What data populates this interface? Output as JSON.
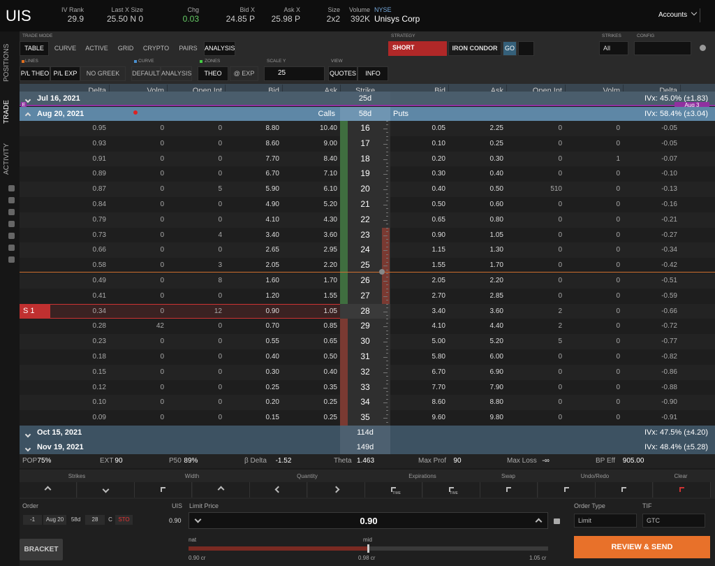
{
  "header": {
    "symbol": "UIS",
    "stats": [
      {
        "label": "IV Rank",
        "value": "29.9"
      },
      {
        "label": "Last X Size",
        "value": "25.50 N 0"
      },
      {
        "label": "Chg",
        "value": "0.03"
      },
      {
        "label": "Bid X",
        "value": "24.85 P"
      },
      {
        "label": "Ask X",
        "value": "25.98 P"
      },
      {
        "label": "Size",
        "value": "2x2"
      },
      {
        "label": "Volume",
        "value": "392K"
      },
      {
        "label": "NYSE",
        "value": "Unisys Corp"
      }
    ],
    "accounts": "Accounts"
  },
  "sidebar": [
    "POSITIONS",
    "TRADE",
    "ACTIVITY"
  ],
  "toolbar": {
    "trade_mode": {
      "label": "TRADE MODE",
      "buttons": [
        "TABLE",
        "CURVE",
        "ACTIVE",
        "GRID",
        "CRYPTO",
        "PAIRS",
        "ANALYSIS"
      ]
    },
    "strategy": {
      "label": "STRATEGY",
      "side": "SHORT",
      "name": "IRON CONDOR",
      "go": "GO"
    },
    "strikes": {
      "label": "STRIKES",
      "value": "All"
    },
    "config": {
      "label": "CONFIG"
    },
    "lines": {
      "label": "LINES",
      "buttons": [
        "P/L THEO",
        "P/L EXP",
        "NO GREEK"
      ]
    },
    "curve": {
      "label": "CURVE",
      "buttons": [
        "DEFAULT",
        "ANALYSIS"
      ]
    },
    "zones": {
      "label": "ZONES",
      "buttons": [
        "THEO",
        "@ EXP"
      ]
    },
    "scale_y": {
      "label": "SCALE Y",
      "value": "25"
    },
    "view": {
      "label": "VIEW",
      "buttons": [
        "QUOTES",
        "INFO"
      ]
    }
  },
  "chain": {
    "call_columns": [
      "Delta",
      "Volm",
      "Open Int",
      "Bid",
      "Ask"
    ],
    "strike_header": "Strike",
    "put_columns": [
      "Bid",
      "Ask",
      "Open Int",
      "Volm",
      "Delta"
    ],
    "earnings_marker": "E",
    "earnings_date": "Aug 3",
    "expirations": [
      {
        "date": "Jul 16, 2021",
        "dte": "25d",
        "ivx": "IVx: 45.0% (±1.83)"
      },
      {
        "date": "Aug 20, 2021",
        "calls": "Calls",
        "dte": "58d",
        "puts": "Puts",
        "ivx": "IVx: 58.4% (±3.04)"
      },
      {
        "date": "Oct 15, 2021",
        "dte": "114d",
        "ivx": "IVx: 47.5% (±4.20)"
      },
      {
        "date": "Nov 19, 2021",
        "dte": "149d",
        "ivx": "IVx: 48.4% (±5.28)"
      }
    ],
    "rows": [
      {
        "calls": [
          "0.95",
          "0",
          "0",
          "8.80",
          "10.40"
        ],
        "strike": "16",
        "puts": [
          "0.05",
          "2.25",
          "0",
          "0",
          "-0.05"
        ]
      },
      {
        "calls": [
          "0.93",
          "0",
          "0",
          "8.60",
          "9.00"
        ],
        "strike": "17",
        "puts": [
          "0.10",
          "0.25",
          "0",
          "0",
          "-0.05"
        ]
      },
      {
        "calls": [
          "0.91",
          "0",
          "0",
          "7.70",
          "8.40"
        ],
        "strike": "18",
        "puts": [
          "0.20",
          "0.30",
          "0",
          "1",
          "-0.07"
        ]
      },
      {
        "calls": [
          "0.89",
          "0",
          "0",
          "6.70",
          "7.10"
        ],
        "strike": "19",
        "puts": [
          "0.30",
          "0.40",
          "0",
          "0",
          "-0.10"
        ]
      },
      {
        "calls": [
          "0.87",
          "0",
          "5",
          "5.90",
          "6.10"
        ],
        "strike": "20",
        "puts": [
          "0.40",
          "0.50",
          "510",
          "0",
          "-0.13"
        ]
      },
      {
        "calls": [
          "0.84",
          "0",
          "0",
          "4.90",
          "5.20"
        ],
        "strike": "21",
        "puts": [
          "0.50",
          "0.60",
          "0",
          "0",
          "-0.16"
        ]
      },
      {
        "calls": [
          "0.79",
          "0",
          "0",
          "4.10",
          "4.30"
        ],
        "strike": "22",
        "puts": [
          "0.65",
          "0.80",
          "0",
          "0",
          "-0.21"
        ]
      },
      {
        "calls": [
          "0.73",
          "0",
          "4",
          "3.40",
          "3.60"
        ],
        "strike": "23",
        "puts": [
          "0.90",
          "1.05",
          "0",
          "0",
          "-0.27"
        ]
      },
      {
        "calls": [
          "0.66",
          "0",
          "0",
          "2.65",
          "2.95"
        ],
        "strike": "24",
        "puts": [
          "1.15",
          "1.30",
          "0",
          "0",
          "-0.34"
        ]
      },
      {
        "calls": [
          "0.58",
          "0",
          "3",
          "2.05",
          "2.20"
        ],
        "strike": "25",
        "puts": [
          "1.55",
          "1.70",
          "0",
          "0",
          "-0.42"
        ]
      },
      {
        "calls": [
          "0.49",
          "0",
          "8",
          "1.60",
          "1.70"
        ],
        "strike": "26",
        "puts": [
          "2.05",
          "2.20",
          "0",
          "0",
          "-0.51"
        ]
      },
      {
        "calls": [
          "0.41",
          "0",
          "0",
          "1.20",
          "1.55"
        ],
        "strike": "27",
        "puts": [
          "2.70",
          "2.85",
          "0",
          "0",
          "-0.59"
        ]
      },
      {
        "calls": [
          "0.34",
          "0",
          "12",
          "0.90",
          "1.05"
        ],
        "strike": "28",
        "puts": [
          "3.40",
          "3.60",
          "2",
          "0",
          "-0.66"
        ],
        "marker": "S 1"
      },
      {
        "calls": [
          "0.28",
          "42",
          "0",
          "0.70",
          "0.85"
        ],
        "strike": "29",
        "puts": [
          "4.10",
          "4.40",
          "2",
          "0",
          "-0.72"
        ]
      },
      {
        "calls": [
          "0.23",
          "0",
          "0",
          "0.55",
          "0.65"
        ],
        "strike": "30",
        "puts": [
          "5.00",
          "5.20",
          "5",
          "0",
          "-0.77"
        ]
      },
      {
        "calls": [
          "0.18",
          "0",
          "0",
          "0.40",
          "0.50"
        ],
        "strike": "31",
        "puts": [
          "5.80",
          "6.00",
          "0",
          "0",
          "-0.82"
        ]
      },
      {
        "calls": [
          "0.15",
          "0",
          "0",
          "0.30",
          "0.40"
        ],
        "strike": "32",
        "puts": [
          "6.70",
          "6.90",
          "0",
          "0",
          "-0.86"
        ]
      },
      {
        "calls": [
          "0.12",
          "0",
          "0",
          "0.25",
          "0.35"
        ],
        "strike": "33",
        "puts": [
          "7.70",
          "7.90",
          "0",
          "0",
          "-0.88"
        ]
      },
      {
        "calls": [
          "0.10",
          "0",
          "0",
          "0.20",
          "0.25"
        ],
        "strike": "34",
        "puts": [
          "8.60",
          "8.80",
          "0",
          "0",
          "-0.90"
        ]
      },
      {
        "calls": [
          "0.09",
          "0",
          "0",
          "0.15",
          "0.25"
        ],
        "strike": "35",
        "puts": [
          "9.60",
          "9.80",
          "0",
          "0",
          "-0.91"
        ]
      }
    ]
  },
  "stats": [
    {
      "label": "POP",
      "value": "75%"
    },
    {
      "label": "EXT",
      "value": "90"
    },
    {
      "label": "P50",
      "value": "89%"
    },
    {
      "label": "β Delta",
      "value": "-1.52"
    },
    {
      "label": "Theta",
      "value": "1.463"
    },
    {
      "label": "Max Prof",
      "value": "90"
    },
    {
      "label": "Max Loss",
      "value": "-∞"
    },
    {
      "label": "BP Eff",
      "value": "905.00"
    }
  ],
  "controls": {
    "labels": [
      "Strikes",
      "Width",
      "Quantity",
      "Expirations",
      "Swap",
      "Undo/Redo",
      "Clear"
    ],
    "time_labels": [
      "TIME",
      "TIME"
    ]
  },
  "order": {
    "label": "Order",
    "legs": [
      "-1",
      "Aug 20",
      "58d",
      "28",
      "C",
      "STO"
    ],
    "symbol": "UIS",
    "mark": "0.90",
    "limit_label": "Limit Price",
    "limit_value": "0.90",
    "order_type_label": "Order Type",
    "order_type": "Limit",
    "tif_label": "TIF",
    "tif": "GTC",
    "bracket": "BRACKET",
    "slider": {
      "nat": "nat",
      "mid": "mid",
      "low": "0.90 cr",
      "center": "0.98 cr",
      "high": "1.05 cr"
    },
    "submit": "REVIEW & SEND"
  }
}
